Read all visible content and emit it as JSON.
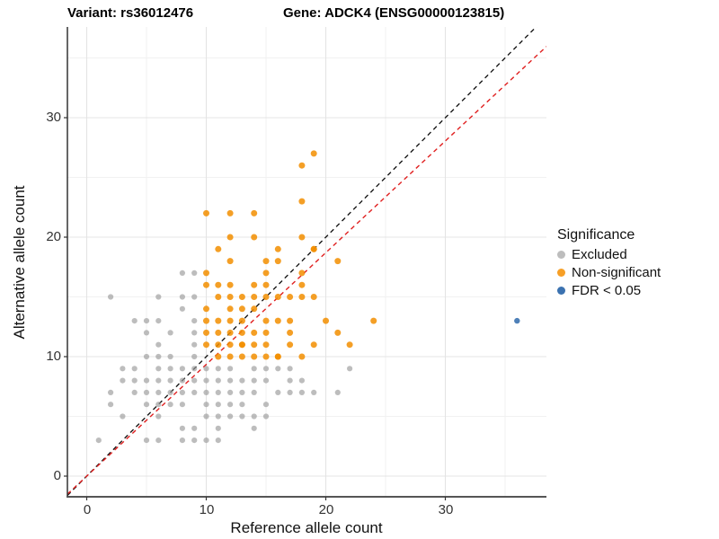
{
  "title": {
    "variant": "Variant: rs36012476",
    "gene": "Gene: ADCK4 (ENSG00000123815)"
  },
  "axes": {
    "x": {
      "label": "Reference allele count",
      "tick_labels": [
        "0",
        "10",
        "20",
        "30"
      ],
      "tick_values": [
        0,
        10,
        20,
        30
      ],
      "minor_ticks": [
        5,
        15,
        25,
        35
      ],
      "range": [
        -1.6,
        38.5
      ]
    },
    "y": {
      "label": "Alternative allele count",
      "tick_labels": [
        "0",
        "10",
        "20",
        "30"
      ],
      "tick_values": [
        0,
        10,
        20,
        30
      ],
      "minor_ticks": [
        5,
        15,
        25,
        35
      ],
      "range": [
        -1.7,
        37.6
      ]
    }
  },
  "legend": {
    "title": "Significance",
    "items": [
      {
        "label": "Excluded",
        "color": "#bdbdbd"
      },
      {
        "label": "Non-significant",
        "color": "#f79f26"
      },
      {
        "label": "FDR < 0.05",
        "color": "#3b72b0"
      }
    ]
  },
  "chart_data": {
    "type": "scatter",
    "title": "Variant: rs36012476 / Gene: ADCK4 (ENSG00000123815)",
    "xlabel": "Reference allele count",
    "ylabel": "Alternative allele count",
    "xlim": [
      -1.6,
      38.5
    ],
    "ylim": [
      -1.7,
      37.6
    ],
    "grid": "on",
    "legend_position": "right",
    "reference_lines": [
      {
        "name": "identity",
        "slope": 1,
        "intercept": 0,
        "color": "#1a1a1a",
        "style": "dashed"
      },
      {
        "name": "expected-ratio",
        "slope": 0.935,
        "intercept": 0,
        "color": "#e02020",
        "style": "dashed"
      }
    ],
    "series": [
      {
        "name": "Excluded",
        "color": "#999999",
        "opacity": 0.65,
        "r": 3.1,
        "points": [
          [
            8,
            17
          ],
          [
            9,
            17
          ],
          [
            2,
            15
          ],
          [
            6,
            15
          ],
          [
            8,
            15
          ],
          [
            9,
            15
          ],
          [
            8,
            14
          ],
          [
            4,
            13
          ],
          [
            5,
            13
          ],
          [
            6,
            13
          ],
          [
            9,
            13
          ],
          [
            5,
            12
          ],
          [
            7,
            12
          ],
          [
            9,
            12
          ],
          [
            6,
            11
          ],
          [
            9,
            11
          ],
          [
            5,
            10
          ],
          [
            6,
            10
          ],
          [
            7,
            10
          ],
          [
            9,
            10
          ],
          [
            3,
            9
          ],
          [
            4,
            9
          ],
          [
            6,
            9
          ],
          [
            7,
            9
          ],
          [
            8,
            9
          ],
          [
            9,
            9
          ],
          [
            10,
            9
          ],
          [
            11,
            9
          ],
          [
            12,
            9
          ],
          [
            14,
            9
          ],
          [
            15,
            9
          ],
          [
            16,
            9
          ],
          [
            17,
            9
          ],
          [
            22,
            9
          ],
          [
            3,
            8
          ],
          [
            4,
            8
          ],
          [
            5,
            8
          ],
          [
            6,
            8
          ],
          [
            7,
            8
          ],
          [
            8,
            8
          ],
          [
            9,
            8
          ],
          [
            10,
            8
          ],
          [
            11,
            8
          ],
          [
            12,
            8
          ],
          [
            13,
            8
          ],
          [
            14,
            8
          ],
          [
            15,
            8
          ],
          [
            17,
            8
          ],
          [
            18,
            8
          ],
          [
            2,
            7
          ],
          [
            4,
            7
          ],
          [
            5,
            7
          ],
          [
            6,
            7
          ],
          [
            7,
            7
          ],
          [
            8,
            7
          ],
          [
            9,
            7
          ],
          [
            10,
            7
          ],
          [
            11,
            7
          ],
          [
            12,
            7
          ],
          [
            13,
            7
          ],
          [
            14,
            7
          ],
          [
            16,
            7
          ],
          [
            17,
            7
          ],
          [
            18,
            7
          ],
          [
            19,
            7
          ],
          [
            21,
            7
          ],
          [
            2,
            6
          ],
          [
            5,
            6
          ],
          [
            6,
            6
          ],
          [
            7,
            6
          ],
          [
            8,
            6
          ],
          [
            10,
            6
          ],
          [
            11,
            6
          ],
          [
            12,
            6
          ],
          [
            13,
            6
          ],
          [
            15,
            6
          ],
          [
            3,
            5
          ],
          [
            6,
            5
          ],
          [
            10,
            5
          ],
          [
            11,
            5
          ],
          [
            12,
            5
          ],
          [
            13,
            5
          ],
          [
            14,
            5
          ],
          [
            15,
            5
          ],
          [
            8,
            4
          ],
          [
            9,
            4
          ],
          [
            11,
            4
          ],
          [
            14,
            4
          ],
          [
            1,
            3
          ],
          [
            5,
            3
          ],
          [
            6,
            3
          ],
          [
            8,
            3
          ],
          [
            9,
            3
          ],
          [
            10,
            3
          ],
          [
            11,
            3
          ]
        ]
      },
      {
        "name": "Non-significant",
        "color": "#f28e00",
        "opacity": 0.85,
        "r": 3.5,
        "points": [
          [
            19,
            27
          ],
          [
            18,
            26
          ],
          [
            18,
            23
          ],
          [
            10,
            22
          ],
          [
            12,
            22
          ],
          [
            14,
            22
          ],
          [
            12,
            20
          ],
          [
            14,
            20
          ],
          [
            18,
            20
          ],
          [
            11,
            19
          ],
          [
            16,
            19
          ],
          [
            19,
            19
          ],
          [
            19,
            19
          ],
          [
            12,
            18
          ],
          [
            15,
            18
          ],
          [
            16,
            18
          ],
          [
            21,
            18
          ],
          [
            10,
            17
          ],
          [
            15,
            17
          ],
          [
            18,
            17
          ],
          [
            10,
            16
          ],
          [
            11,
            16
          ],
          [
            12,
            16
          ],
          [
            14,
            16
          ],
          [
            15,
            16
          ],
          [
            18,
            16
          ],
          [
            11,
            15
          ],
          [
            12,
            15
          ],
          [
            13,
            15
          ],
          [
            14,
            15
          ],
          [
            15,
            15
          ],
          [
            16,
            15
          ],
          [
            17,
            15
          ],
          [
            18,
            15
          ],
          [
            19,
            15
          ],
          [
            10,
            14
          ],
          [
            12,
            14
          ],
          [
            13,
            14
          ],
          [
            14,
            14
          ],
          [
            10,
            13
          ],
          [
            11,
            13
          ],
          [
            12,
            13
          ],
          [
            13,
            13
          ],
          [
            15,
            13
          ],
          [
            16,
            13
          ],
          [
            17,
            13
          ],
          [
            20,
            13
          ],
          [
            24,
            13
          ],
          [
            10,
            12
          ],
          [
            11,
            12
          ],
          [
            12,
            12
          ],
          [
            13,
            12
          ],
          [
            14,
            12
          ],
          [
            15,
            12
          ],
          [
            17,
            12
          ],
          [
            21,
            12
          ],
          [
            10,
            11
          ],
          [
            11,
            11
          ],
          [
            12,
            11
          ],
          [
            13,
            11
          ],
          [
            13,
            11
          ],
          [
            14,
            11
          ],
          [
            15,
            11
          ],
          [
            17,
            11
          ],
          [
            19,
            11
          ],
          [
            22,
            11
          ],
          [
            11,
            10
          ],
          [
            12,
            10
          ],
          [
            13,
            10
          ],
          [
            14,
            10
          ],
          [
            15,
            10
          ],
          [
            16,
            10
          ],
          [
            16,
            10
          ],
          [
            18,
            10
          ]
        ]
      },
      {
        "name": "FDR < 0.05",
        "color": "#3b72b0",
        "opacity": 0.9,
        "r": 3.2,
        "points": [
          [
            36,
            13
          ]
        ]
      }
    ]
  }
}
